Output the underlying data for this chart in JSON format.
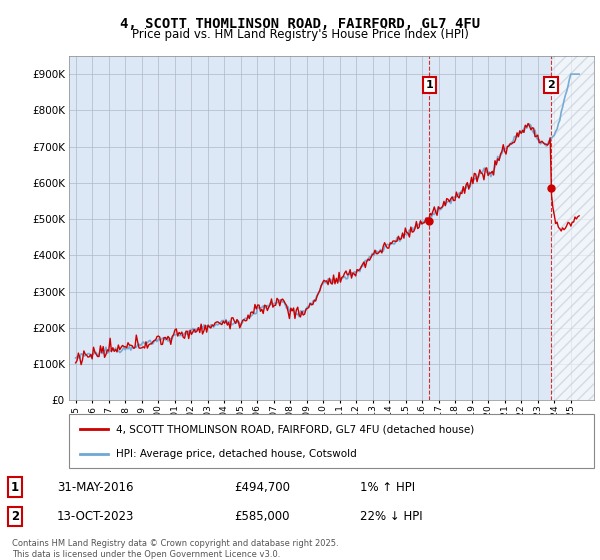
{
  "title": "4, SCOTT THOMLINSON ROAD, FAIRFORD, GL7 4FU",
  "subtitle": "Price paid vs. HM Land Registry's House Price Index (HPI)",
  "legend_line1": "4, SCOTT THOMLINSON ROAD, FAIRFORD, GL7 4FU (detached house)",
  "legend_line2": "HPI: Average price, detached house, Cotswold",
  "annotation1_num": "1",
  "annotation1_date": "31-MAY-2016",
  "annotation1_price": "£494,700",
  "annotation1_hpi": "1% ↑ HPI",
  "annotation2_num": "2",
  "annotation2_date": "13-OCT-2023",
  "annotation2_price": "£585,000",
  "annotation2_hpi": "22% ↓ HPI",
  "footer": "Contains HM Land Registry data © Crown copyright and database right 2025.\nThis data is licensed under the Open Government Licence v3.0.",
  "hpi_color": "#6fa8d4",
  "price_color": "#cc0000",
  "annotation_color": "#cc0000",
  "grid_color": "#b0b8c8",
  "bg_color": "#dce8f5",
  "hatch_color": "#c0c8d8",
  "ylim": [
    0,
    950000
  ],
  "yticks": [
    0,
    100000,
    200000,
    300000,
    400000,
    500000,
    600000,
    700000,
    800000,
    900000
  ],
  "purchase1_year": 2016.42,
  "purchase1_price": 494700,
  "purchase2_year": 2023.79,
  "purchase2_price": 585000,
  "xmin": 1994.6,
  "xmax": 2026.4
}
